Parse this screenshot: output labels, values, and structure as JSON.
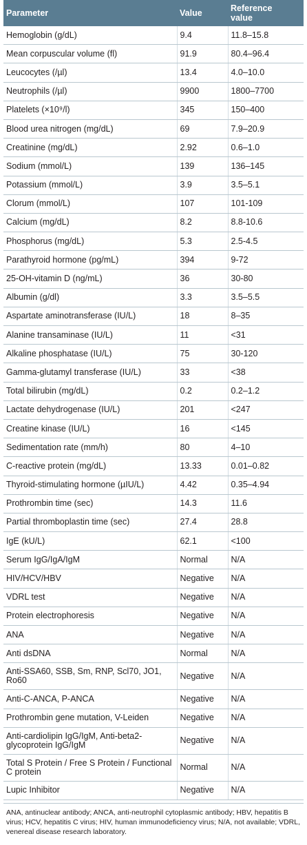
{
  "header": {
    "parameter": "Parameter",
    "value": "Value",
    "reference_line1": "Reference",
    "reference_line2": "value"
  },
  "rows": [
    {
      "parameter": "Hemoglobin (g/dL)",
      "value": "9.4",
      "reference": "11.8–15.8"
    },
    {
      "parameter": "Mean corpuscular volume (fl)",
      "value": "91.9",
      "reference": "80.4–96.4"
    },
    {
      "parameter": "Leucocytes (/µl)",
      "value": "13.4",
      "reference": "4.0–10.0"
    },
    {
      "parameter": "Neutrophils (/µl)",
      "value": "9900",
      "reference": "1800–7700"
    },
    {
      "parameter": "Platelets (×10⁹/l)",
      "value": "345",
      "reference": "150–400"
    },
    {
      "parameter": "Blood urea nitrogen (mg/dL)",
      "value": "69",
      "reference": "7.9–20.9"
    },
    {
      "parameter": "Creatinine (mg/dL)",
      "value": "2.92",
      "reference": "0.6–1.0"
    },
    {
      "parameter": "Sodium (mmol/L)",
      "value": "139",
      "reference": "136–145"
    },
    {
      "parameter": "Potassium (mmol/L)",
      "value": "3.9",
      "reference": "3.5–5.1"
    },
    {
      "parameter": "Clorum (mmol/L)",
      "value": "107",
      "reference": "101-109"
    },
    {
      "parameter": "Calcium (mg/dL)",
      "value": "8.2",
      "reference": "8.8-10.6"
    },
    {
      "parameter": "Phosphorus (mg/dL)",
      "value": "5.3",
      "reference": "2.5-4.5"
    },
    {
      "parameter": "Parathyroid hormone (pg/mL)",
      "value": "394",
      "reference": "9-72"
    },
    {
      "parameter": "25-OH-vitamin D (ng/mL)",
      "value": "36",
      "reference": "30-80"
    },
    {
      "parameter": "Albumin (g/dl)",
      "value": "3.3",
      "reference": "3.5–5.5"
    },
    {
      "parameter": "Aspartate aminotransferase (IU/L)",
      "value": "18",
      "reference": "8–35"
    },
    {
      "parameter": "Alanine transaminase (IU/L)",
      "value": "11",
      "reference": "<31"
    },
    {
      "parameter": "Alkaline phosphatase (IU/L)",
      "value": "75",
      "reference": "30-120"
    },
    {
      "parameter": "Gamma-glutamyl transferase (IU/L)",
      "value": "33",
      "reference": "<38"
    },
    {
      "parameter": "Total bilirubin (mg/dL)",
      "value": "0.2",
      "reference": "0.2–1.2"
    },
    {
      "parameter": "Lactate dehydrogenase (IU/L)",
      "value": "201",
      "reference": "<247"
    },
    {
      "parameter": "Creatine kinase (IU/L)",
      "value": "16",
      "reference": "<145"
    },
    {
      "parameter": "Sedimentation rate (mm/h)",
      "value": "80",
      "reference": "4–10"
    },
    {
      "parameter": "C-reactive protein (mg/dL)",
      "value": "13.33",
      "reference": "0.01–0.82"
    },
    {
      "parameter": "Thyroid-stimulating hormone (µIU/L)",
      "value": "4.42",
      "reference": "0.35–4.94"
    },
    {
      "parameter": "Prothrombin time (sec)",
      "value": "14.3",
      "reference": "11.6"
    },
    {
      "parameter": "Partial thromboplastin time (sec)",
      "value": "27.4",
      "reference": "28.8"
    },
    {
      "parameter": "IgE (kU/L)",
      "value": "62.1",
      "reference": "<100"
    },
    {
      "parameter": "Serum IgG/IgA/IgM",
      "value": "Normal",
      "reference": "N/A"
    },
    {
      "parameter": "HIV/HCV/HBV",
      "value": "Negative",
      "reference": "N/A"
    },
    {
      "parameter": "VDRL test",
      "value": "Negative",
      "reference": "N/A"
    },
    {
      "parameter": "Protein electrophoresis",
      "value": "Negative",
      "reference": "N/A"
    },
    {
      "parameter": "ANA",
      "value": "Negative",
      "reference": "N/A"
    },
    {
      "parameter": "Anti dsDNA",
      "value": "Normal",
      "reference": "N/A"
    },
    {
      "parameter": "Anti-SSA60, SSB, Sm, RNP, Scl70, JO1, Ro60",
      "value": "Negative",
      "reference": "N/A",
      "tall": true
    },
    {
      "parameter": "Anti-C-ANCA, P-ANCA",
      "value": "Negative",
      "reference": "N/A"
    },
    {
      "parameter": "Prothrombin gene mutation, V-Leiden",
      "value": "Negative",
      "reference": "N/A"
    },
    {
      "parameter": "Anti-cardiolipin IgG/IgM, Anti-beta2-glycoprotein IgG/IgM",
      "value": "Negative",
      "reference": "N/A",
      "tall": true
    },
    {
      "parameter": "Total S Protein / Free S Protein / Functional C protein",
      "value": "Normal",
      "reference": "N/A",
      "tall": true
    },
    {
      "parameter": "Lupic Inhibitor",
      "value": "Negative",
      "reference": "N/A"
    }
  ],
  "footnote": "ANA, antinuclear antibody; ANCA, anti-neutrophil cytoplasmic antibody; HBV, hepatitis B virus; HCV, hepatitis C virus; HIV, human immunodeficiency virus; N/A, not available; VDRL, venereal disease research laboratory."
}
